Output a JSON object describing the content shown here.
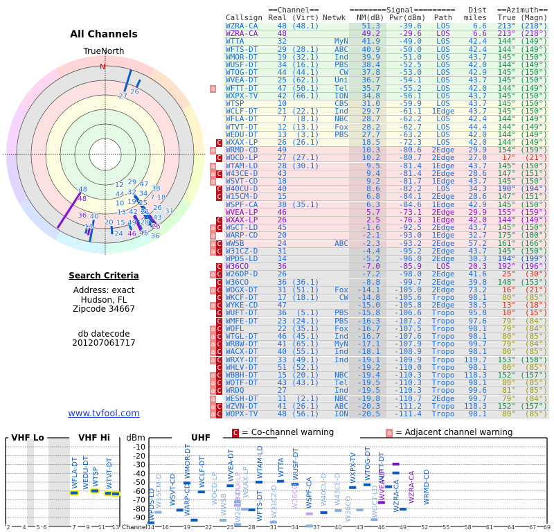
{
  "left": {
    "title": "All Channels",
    "true_north": "TrueNorth",
    "north_marker": "N",
    "search_heading": "Search Criteria",
    "address": "Address: exact",
    "city": "Hudson, FL",
    "zipcode": "Zipcode 34667",
    "db_label": "db datecode",
    "db_value": "201207061717",
    "site_link": "www.tvfool.com"
  },
  "table": {
    "group_headers": {
      "channel": "==Channel==",
      "signal": "========Signal=========",
      "dist": "Dist",
      "azimuth": "==Azimuth=="
    },
    "columns": {
      "callsign": "Callsign",
      "real": "Real",
      "virt": "(Virt)",
      "netwk": "Netwk",
      "nm": "NM(dB)",
      "pwr": "Pwr(dBm)",
      "path": "Path",
      "miles": "miles",
      "true": "True",
      "magn": "(Magn)"
    },
    "rows": [
      {
        "flags": "",
        "call": "WZRA-CA",
        "real": "48",
        "virt": "(48.1)",
        "net": "",
        "nm": "51.3",
        "pwr": "-39.6",
        "path": "LOS",
        "dist": "6.6",
        "true": "213°",
        "magn": "(218°)",
        "band": "green",
        "tone": "normal",
        "az": "b"
      },
      {
        "flags": "",
        "call": "WZRA-CA",
        "real": "48",
        "virt": "",
        "net": "",
        "nm": "49.2",
        "pwr": "-29.6",
        "path": "LOS",
        "dist": "6.6",
        "true": "213°",
        "magn": "(218°)",
        "band": "green",
        "tone": "purple",
        "az": "b"
      },
      {
        "flags": "",
        "call": "WTTA",
        "real": "32",
        "virt": "",
        "net": "MyN",
        "nm": "41.9",
        "pwr": "-49.0",
        "path": "LOS",
        "dist": "42.4",
        "true": "144°",
        "magn": "(149°)",
        "band": "green",
        "tone": "normal",
        "az": "g"
      },
      {
        "flags": "",
        "call": "WFTS-DT",
        "real": "29",
        "virt": "(28.1)",
        "net": "ABC",
        "nm": "40.9",
        "pwr": "-50.0",
        "path": "LOS",
        "dist": "42.4",
        "true": "144°",
        "magn": "(149°)",
        "band": "green",
        "tone": "normal",
        "az": "g"
      },
      {
        "flags": "",
        "call": "WMOR-DT",
        "real": "19",
        "virt": "(32.1)",
        "net": "Ind",
        "nm": "39.9",
        "pwr": "-51.0",
        "path": "LOS",
        "dist": "43.7",
        "true": "145°",
        "magn": "(150°)",
        "band": "green",
        "tone": "normal",
        "az": "g"
      },
      {
        "flags": "",
        "call": "WUSF-DT",
        "real": "34",
        "virt": "(16.1)",
        "net": "PBS",
        "nm": "38.4",
        "pwr": "-52.5",
        "path": "LOS",
        "dist": "42.0",
        "true": "144°",
        "magn": "(149°)",
        "band": "green",
        "tone": "normal",
        "az": "g"
      },
      {
        "flags": "",
        "call": "WTOG-DT",
        "real": "44",
        "virt": "(44.1)",
        "net": "CW",
        "nm": "37.8",
        "pwr": "-53.0",
        "path": "LOS",
        "dist": "42.9",
        "true": "145°",
        "magn": "(150°)",
        "band": "green",
        "tone": "normal",
        "az": "g"
      },
      {
        "flags": "",
        "call": "WVEA-DT",
        "real": "25",
        "virt": "(62.1)",
        "net": "Uni",
        "nm": "36.7",
        "pwr": "-54.1",
        "path": "LOS",
        "dist": "43.7",
        "true": "145°",
        "magn": "(150°)",
        "band": "green",
        "tone": "normal",
        "az": "g"
      },
      {
        "flags": "a",
        "call": "WFTT-DT",
        "real": "47",
        "virt": "(50.1)",
        "net": "Tel",
        "nm": "35.7",
        "pwr": "-55.2",
        "path": "LOS",
        "dist": "42.0",
        "true": "144°",
        "magn": "(149°)",
        "band": "green",
        "tone": "normal",
        "az": "g"
      },
      {
        "flags": "",
        "call": "WXPX-TV",
        "real": "42",
        "virt": "(66.1)",
        "net": "ION",
        "nm": "34.8",
        "pwr": "-56.1",
        "path": "LOS",
        "dist": "43.7",
        "true": "145°",
        "magn": "(150°)",
        "band": "green",
        "tone": "normal",
        "az": "g"
      },
      {
        "flags": "",
        "call": "WTSP",
        "real": "10",
        "virt": "",
        "net": "CBS",
        "nm": "31.0",
        "pwr": "-59.9",
        "path": "LOS",
        "dist": "43.7",
        "true": "145°",
        "magn": "(150°)",
        "band": "yellow",
        "tone": "normal",
        "az": "g"
      },
      {
        "flags": "",
        "call": "WCLF-DT",
        "real": "21",
        "virt": "(22.1)",
        "net": "Ind",
        "nm": "29.7",
        "pwr": "-61.1",
        "path": "1Edge",
        "dist": "43.7",
        "true": "145°",
        "magn": "(150°)",
        "band": "yellow",
        "tone": "normal",
        "az": "g"
      },
      {
        "flags": "",
        "call": "WFLA-DT",
        "real": "7",
        "virt": "(8.1)",
        "net": "NBC",
        "nm": "28.7",
        "pwr": "-62.2",
        "path": "LOS",
        "dist": "42.4",
        "true": "144°",
        "magn": "(149°)",
        "band": "yellow",
        "tone": "normal",
        "az": "g"
      },
      {
        "flags": "",
        "call": "WTVT-DT",
        "real": "12",
        "virt": "(13.1)",
        "net": "Fox",
        "nm": "28.2",
        "pwr": "-62.7",
        "path": "LOS",
        "dist": "44.4",
        "true": "144°",
        "magn": "(149°)",
        "band": "yellow",
        "tone": "normal",
        "az": "g"
      },
      {
        "flags": "",
        "call": "WEDU-DT",
        "real": "13",
        "virt": "(3.1)",
        "net": "PBS",
        "nm": "27.7",
        "pwr": "-63.2",
        "path": "LOS",
        "dist": "42.0",
        "true": "144°",
        "magn": "(149°)",
        "band": "yellow",
        "tone": "normal",
        "az": "g"
      },
      {
        "flags": "C",
        "call": "WXAX-LP",
        "real": "26",
        "virt": "(26.1)",
        "net": "",
        "nm": "18.5",
        "pwr": "-72.3",
        "path": "LOS",
        "dist": "42.0",
        "true": "144°",
        "magn": "(149°)",
        "band": "yellow",
        "tone": "normal",
        "az": "g"
      },
      {
        "flags": "a",
        "call": "WRMD-CD",
        "real": "49",
        "virt": "",
        "net": "",
        "nm": "10.3",
        "pwr": "-80.6",
        "path": "2Edge",
        "dist": "29.9",
        "true": "154°",
        "magn": "(159°)",
        "band": "pink",
        "tone": "normal",
        "az": "g"
      },
      {
        "flags": "C",
        "call": "WOCD-LP",
        "real": "27",
        "virt": "(27.1)",
        "net": "",
        "nm": "10.2",
        "pwr": "-80.7",
        "path": "2Edge",
        "dist": "27.0",
        "true": "17°",
        "magn": "(21°)",
        "band": "pink",
        "tone": "normal",
        "az": "r"
      },
      {
        "flags": "a",
        "call": "WTAM-LD",
        "real": "28",
        "virt": "(30.1)",
        "net": "",
        "nm": "9.5",
        "pwr": "-81.4",
        "path": "1Edge",
        "dist": "43.7",
        "true": "145°",
        "magn": "(150°)",
        "band": "pink",
        "tone": "normal",
        "az": "g"
      },
      {
        "flags": "aC",
        "call": "W43CE-D",
        "real": "43",
        "virt": "",
        "net": "",
        "nm": "9.4",
        "pwr": "-81.4",
        "path": "2Edge",
        "dist": "28.6",
        "true": "147°",
        "magn": "(151°)",
        "band": "pink",
        "tone": "normal",
        "az": "g"
      },
      {
        "flags": "a",
        "call": "WSVT-CD",
        "real": "18",
        "virt": "",
        "net": "",
        "nm": "9.2",
        "pwr": "-81.7",
        "path": "1Edge",
        "dist": "43.7",
        "true": "145°",
        "magn": "(150°)",
        "band": "pink",
        "tone": "normal",
        "az": "g"
      },
      {
        "flags": "C",
        "call": "W40CU-D",
        "real": "40",
        "virt": "",
        "net": "",
        "nm": "8.6",
        "pwr": "-82.2",
        "path": "LOS",
        "dist": "34.3",
        "true": "190°",
        "magn": "(194°)",
        "band": "pink",
        "tone": "normal",
        "az": "b"
      },
      {
        "flags": "C",
        "call": "W15CM-D",
        "real": "15",
        "virt": "",
        "net": "",
        "nm": "6.8",
        "pwr": "-84.1",
        "path": "2Edge",
        "dist": "28.6",
        "true": "147°",
        "magn": "(151°)",
        "band": "pink",
        "tone": "normal",
        "az": "g"
      },
      {
        "flags": "",
        "call": "WSPF-CA",
        "real": "38",
        "virt": "(35.1)",
        "net": "",
        "nm": "6.3",
        "pwr": "-84.6",
        "path": "1Edge",
        "dist": "42.9",
        "true": "145°",
        "magn": "(150°)",
        "band": "pink",
        "tone": "normal",
        "az": "g"
      },
      {
        "flags": "",
        "call": "WVEA-LP",
        "real": "46",
        "virt": "",
        "net": "",
        "nm": "5.7",
        "pwr": "-73.1",
        "path": "2Edge",
        "dist": "29.9",
        "true": "155°",
        "magn": "(159°)",
        "band": "pink",
        "tone": "purple",
        "az": "g"
      },
      {
        "flags": "C",
        "call": "WXAX-LP",
        "real": "26",
        "virt": "",
        "net": "",
        "nm": "2.5",
        "pwr": "-76.3",
        "path": "1Edge",
        "dist": "42.0",
        "true": "144°",
        "magn": "(149°)",
        "band": "pink",
        "tone": "purple",
        "az": "g"
      },
      {
        "flags": "aC",
        "call": "WGCT-LD",
        "real": "45",
        "virt": "",
        "net": "",
        "nm": "-1.6",
        "pwr": "-92.5",
        "path": "2Edge",
        "dist": "43.7",
        "true": "145°",
        "magn": "(150°)",
        "band": "pink",
        "tone": "normal",
        "az": "g"
      },
      {
        "flags": "a",
        "call": "WARP-CD",
        "real": "20",
        "virt": "",
        "net": "",
        "nm": "-2.1",
        "pwr": "-93.0",
        "path": "1Edge",
        "dist": "32.7",
        "true": "175°",
        "magn": "(180°)",
        "band": "pink",
        "tone": "normal",
        "az": "g"
      },
      {
        "flags": "aC",
        "call": "WWSB",
        "real": "24",
        "virt": "",
        "net": "ABC",
        "nm": "-2.3",
        "pwr": "-93.2",
        "path": "2Edge",
        "dist": "57.2",
        "true": "161°",
        "magn": "(166°)",
        "band": "pink",
        "tone": "normal",
        "az": "g"
      },
      {
        "flags": "aC",
        "call": "W31CZ-D",
        "real": "31",
        "virt": "",
        "net": "",
        "nm": "-4.4",
        "pwr": "-95.2",
        "path": "2Edge",
        "dist": "43.7",
        "true": "145°",
        "magn": "(150°)",
        "band": "gray",
        "tone": "normal",
        "az": "g"
      },
      {
        "flags": "",
        "call": "WPDS-LD",
        "real": "14",
        "virt": "",
        "net": "",
        "nm": "-5.2",
        "pwr": "-96.0",
        "path": "2Edge",
        "dist": "30.3",
        "true": "194°",
        "magn": "(199°)",
        "band": "gray",
        "tone": "normal",
        "az": "b"
      },
      {
        "flags": "C",
        "call": "W36CO",
        "real": "36",
        "virt": "",
        "net": "",
        "nm": "-7.0",
        "pwr": "-85.9",
        "path": "LOS",
        "dist": "20.3",
        "true": "192°",
        "magn": "(196°)",
        "band": "gray",
        "tone": "purple",
        "az": "b"
      },
      {
        "flags": "aC",
        "call": "W26DP-D",
        "real": "26",
        "virt": "",
        "net": "",
        "nm": "-7.2",
        "pwr": "-98.0",
        "path": "2Edge",
        "dist": "41.6",
        "true": "25°",
        "magn": "(30°)",
        "band": "gray",
        "tone": "normal",
        "az": "r"
      },
      {
        "flags": "C",
        "call": "W36CO",
        "real": "36",
        "virt": "(36.1)",
        "net": "",
        "nm": "-8.8",
        "pwr": "-99.7",
        "path": "2Edge",
        "dist": "39.8",
        "true": "148°",
        "magn": "(153°)",
        "band": "gray",
        "tone": "normal",
        "az": "g"
      },
      {
        "flags": "aC",
        "call": "WOGX-DT",
        "real": "31",
        "virt": "(51.1)",
        "net": "Fox",
        "nm": "-14.1",
        "pwr": "-105.0",
        "path": "2Edge",
        "dist": "73.2",
        "true": "16°",
        "magn": "(21°)",
        "band": "gray",
        "tone": "normal",
        "az": "r"
      },
      {
        "flags": "C",
        "call": "WKCF-DT",
        "real": "17",
        "virt": "(18.1)",
        "net": "CW",
        "nm": "-14.8",
        "pwr": "-105.6",
        "path": "Tropo",
        "dist": "98.1",
        "true": "80°",
        "magn": "(85°)",
        "band": "gray",
        "tone": "normal",
        "az": "o"
      },
      {
        "flags": "aC",
        "call": "WYKE-CD",
        "real": "47",
        "virt": "",
        "net": "",
        "nm": "-15.0",
        "pwr": "-105.8",
        "path": "2Edge",
        "dist": "38.5",
        "true": "13°",
        "magn": "(18°)",
        "band": "gray",
        "tone": "normal",
        "az": "r"
      },
      {
        "flags": "C",
        "call": "WUFT-DT",
        "real": "36",
        "virt": "(5.1)",
        "net": "PBS",
        "nm": "-15.8",
        "pwr": "-106.6",
        "path": "Tropo",
        "dist": "95.8",
        "true": "10°",
        "magn": "(15°)",
        "band": "gray",
        "tone": "normal",
        "az": "r"
      },
      {
        "flags": "C",
        "call": "WMFE-DT",
        "real": "23",
        "virt": "(24.1)",
        "net": "PBS",
        "nm": "-16.3",
        "pwr": "-107.2",
        "path": "Tropo",
        "dist": "97.6",
        "true": "79°",
        "magn": "(84°)",
        "band": "gray",
        "tone": "normal",
        "az": "o"
      },
      {
        "flags": "aC",
        "call": "WOFL",
        "real": "22",
        "virt": "(35.1)",
        "net": "Fox",
        "nm": "-16.7",
        "pwr": "-107.5",
        "path": "Tropo",
        "dist": "98.1",
        "true": "79°",
        "magn": "(84°)",
        "band": "gray",
        "tone": "normal",
        "az": "o"
      },
      {
        "flags": "aC",
        "call": "WTGL-DT",
        "real": "46",
        "virt": "(45.1)",
        "net": "Ind",
        "nm": "-16.7",
        "pwr": "-107.6",
        "path": "Tropo",
        "dist": "98.1",
        "true": "80°",
        "magn": "(85°)",
        "band": "gray",
        "tone": "normal",
        "az": "o"
      },
      {
        "flags": "aC",
        "call": "WRBW-DT",
        "real": "41",
        "virt": "(65.1)",
        "net": "MyN",
        "nm": "-17.1",
        "pwr": "-107.9",
        "path": "Tropo",
        "dist": "99.7",
        "true": "79°",
        "magn": "(84°)",
        "band": "gray",
        "tone": "normal",
        "az": "o"
      },
      {
        "flags": "aC",
        "call": "WACX-DT",
        "real": "40",
        "virt": "(55.1)",
        "net": "Ind",
        "nm": "-18.1",
        "pwr": "-108.9",
        "path": "Tropo",
        "dist": "98.1",
        "true": "80°",
        "magn": "(85°)",
        "band": "gray",
        "tone": "normal",
        "az": "o"
      },
      {
        "flags": "aC",
        "call": "WRXY-DT",
        "real": "33",
        "virt": "(49.1)",
        "net": "Ind",
        "nm": "-19.1",
        "pwr": "-109.9",
        "path": "Tropo",
        "dist": "119.7",
        "true": "153°",
        "magn": "(158°)",
        "band": "gray",
        "tone": "normal",
        "az": "g"
      },
      {
        "flags": "C",
        "call": "WHLV-DT",
        "real": "51",
        "virt": "(52.1)",
        "net": "",
        "nm": "-19.2",
        "pwr": "-110.0",
        "path": "Tropo",
        "dist": "98.1",
        "true": "80°",
        "magn": "(85°)",
        "band": "gray",
        "tone": "normal",
        "az": "o"
      },
      {
        "flags": "aC",
        "call": "WBBH-DT",
        "real": "15",
        "virt": "(20.1)",
        "net": "NBC",
        "nm": "-19.4",
        "pwr": "-110.3",
        "path": "Tropo",
        "dist": "118.3",
        "true": "152°",
        "magn": "(157°)",
        "band": "gray",
        "tone": "normal",
        "az": "g"
      },
      {
        "flags": "aC",
        "call": "WOTF-DT",
        "real": "43",
        "virt": "(43.1)",
        "net": "Tel",
        "nm": "-19.5",
        "pwr": "-110.3",
        "path": "Tropo",
        "dist": "98.1",
        "true": "80°",
        "magn": "(85°)",
        "band": "gray",
        "tone": "normal",
        "az": "o"
      },
      {
        "flags": "aC",
        "call": "WRDQ",
        "real": "27",
        "virt": "",
        "net": "Ind",
        "nm": "-19.5",
        "pwr": "-110.3",
        "path": "Tropo",
        "dist": "99.6",
        "true": "81°",
        "magn": "(85°)",
        "band": "gray",
        "tone": "normal",
        "az": "o"
      },
      {
        "flags": "a",
        "call": "WESH-DT",
        "real": "11",
        "virt": "(2.1)",
        "net": "NBC",
        "nm": "-19.8",
        "pwr": "-110.7",
        "path": "2Edge",
        "dist": "99.7",
        "true": "79°",
        "magn": "(84°)",
        "band": "gray",
        "tone": "normal",
        "az": "o"
      },
      {
        "flags": "aC",
        "call": "WZVN-DT",
        "real": "41",
        "virt": "(26.1)",
        "net": "ABC",
        "nm": "-20.3",
        "pwr": "-111.2",
        "path": "Tropo",
        "dist": "118.3",
        "true": "152°",
        "magn": "(157°)",
        "band": "gray",
        "tone": "normal",
        "az": "g"
      },
      {
        "flags": "aC",
        "call": "WOPX-TV",
        "real": "48",
        "virt": "(56.1)",
        "net": "ION",
        "nm": "-20.5",
        "pwr": "-111.4",
        "path": "Tropo",
        "dist": "98.1",
        "true": "80°",
        "magn": "(85°)",
        "band": "gray",
        "tone": "normal",
        "az": "o"
      }
    ]
  },
  "legend": {
    "co_flag": "C",
    "co_text": "= Co-channel warning",
    "adj_flag": "a",
    "adj_text": "= Adjacent channel warning"
  },
  "spectrum": {
    "vhf_lo": "VHF Lo",
    "vhf_hi": "VHF Hi",
    "uhf": "UHF",
    "unit": "dBm",
    "channel_label": "Channel",
    "dbm_ticks": [
      "-10",
      "-20",
      "-30",
      "-40",
      "-50",
      "-60",
      "-70",
      "-80",
      "-90"
    ],
    "vhf_ticks": [
      "2",
      "4",
      "5",
      "6",
      "7",
      "9",
      "11",
      "13"
    ],
    "uhf_ticks": [
      "14",
      "16",
      "19",
      "22",
      "25",
      "28",
      "31",
      "34",
      "37",
      "40",
      "43",
      "46",
      "49",
      "52",
      "55",
      "58",
      "61",
      "64",
      "67",
      "69"
    ]
  },
  "colors": {
    "text_blue": "#1f6fe0",
    "purple": "#8a10d8",
    "strong_marker": "#0a5ac8",
    "weak_marker": "#86aee0",
    "vhf_highlight": "#f4f000",
    "co_channel": "#c0101a",
    "adjacent": "#f08a8a"
  }
}
